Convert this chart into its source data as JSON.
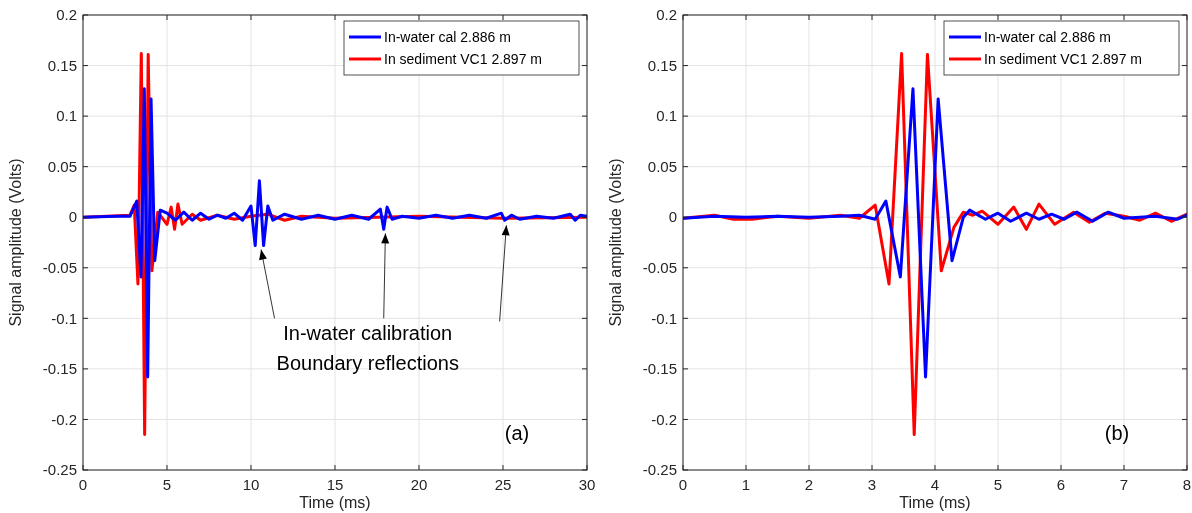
{
  "chart_data": [
    {
      "type": "line",
      "xlabel": "Time (ms)",
      "ylabel": "Signal amplitude (Volts)",
      "xlim": [
        0,
        30
      ],
      "xticks": [
        0,
        5,
        10,
        15,
        20,
        25,
        30
      ],
      "ylim": [
        -0.25,
        0.2
      ],
      "yticks": [
        -0.25,
        -0.2,
        -0.15,
        -0.1,
        -0.05,
        0,
        0.05,
        0.1,
        0.15,
        0.2
      ],
      "grid": true,
      "legend": "top right",
      "annotations": [
        "(a)",
        {
          "text": "In-water calibration\nBoundary reflections",
          "x": 10.6,
          "y": -0.032
        }
      ],
      "series": [
        {
          "name": "In sediment VC1 2.897 m",
          "color": "#ff0000",
          "x": [
            0,
            2.8,
            3.05,
            3.27,
            3.47,
            3.67,
            3.88,
            4.1,
            4.45,
            5,
            5.25,
            5.45,
            5.65,
            5.9,
            6.5,
            7,
            8,
            9,
            10,
            11,
            12,
            13,
            15,
            20,
            25,
            30
          ],
          "values": [
            0,
            0.002,
            0.012,
            -0.066,
            0.162,
            -0.215,
            0.161,
            -0.053,
            0.005,
            -0.007,
            0.01,
            -0.012,
            0.013,
            -0.007,
            0.003,
            -0.003,
            0.002,
            -0.002,
            0.001,
            0.003,
            -0.003,
            0.001,
            -0.001,
            0.001,
            -0.001,
            0
          ]
        },
        {
          "name": "In-water cal 2.886 m",
          "color": "#0000ff",
          "x": [
            0,
            2,
            2.8,
            3.2,
            3.45,
            3.65,
            3.85,
            4.05,
            4.27,
            4.6,
            5,
            5.5,
            6,
            6.5,
            7,
            7.5,
            8,
            8.5,
            9,
            9.5,
            10,
            10.25,
            10.5,
            10.75,
            11,
            11.3,
            12,
            13,
            14,
            15,
            16,
            17,
            17.7,
            17.9,
            18.1,
            18.4,
            19,
            20,
            21,
            22,
            23,
            24,
            24.9,
            25.1,
            25.5,
            26,
            27,
            28,
            29,
            29.3,
            29.6,
            30
          ],
          "values": [
            0,
            0.001,
            0.001,
            0.016,
            -0.059,
            0.127,
            -0.158,
            0.117,
            -0.043,
            0.007,
            0.004,
            -0.003,
            0.005,
            -0.003,
            0.004,
            -0.002,
            0.002,
            -0.001,
            0.004,
            -0.003,
            0.011,
            -0.028,
            0.036,
            -0.028,
            0.011,
            -0.003,
            0.003,
            -0.002,
            0.002,
            -0.002,
            0.002,
            -0.002,
            0.008,
            -0.012,
            0.01,
            -0.002,
            0.001,
            -0.001,
            0.002,
            -0.001,
            0.002,
            -0.001,
            0.004,
            -0.003,
            0.002,
            -0.002,
            0.001,
            -0.001,
            0.003,
            -0.003,
            0.002,
            0.001
          ]
        }
      ]
    },
    {
      "type": "line",
      "xlabel": "Time (ms)",
      "ylabel": "Signal amplitude (Volts)",
      "xlim": [
        0,
        8
      ],
      "xticks": [
        0,
        1,
        2,
        3,
        4,
        5,
        6,
        7,
        8
      ],
      "ylim": [
        -0.25,
        0.2
      ],
      "yticks": [
        -0.25,
        -0.2,
        -0.15,
        -0.1,
        -0.05,
        0,
        0.05,
        0.1,
        0.15,
        0.2
      ],
      "grid": true,
      "legend": "top right",
      "annotations": [
        "(b)"
      ],
      "series": [
        {
          "name": "In sediment VC1 2.897 m",
          "color": "#ff0000",
          "x": [
            0,
            0.5,
            0.8,
            1.1,
            1.5,
            2,
            2.5,
            2.8,
            3.05,
            3.27,
            3.47,
            3.67,
            3.88,
            4.1,
            4.3,
            4.45,
            4.6,
            4.75,
            5,
            5.25,
            5.45,
            5.65,
            5.9,
            6.2,
            6.45,
            6.7,
            7,
            7.25,
            7.5,
            7.75,
            8
          ],
          "values": [
            -0.001,
            0.002,
            -0.002,
            -0.002,
            0.001,
            -0.001,
            0.002,
            -0.001,
            0.012,
            -0.066,
            0.162,
            -0.215,
            0.161,
            -0.053,
            -0.01,
            0.005,
            0.002,
            0.006,
            -0.007,
            0.01,
            -0.012,
            0.013,
            -0.007,
            0.005,
            -0.005,
            0.004,
            0.001,
            -0.003,
            0.004,
            -0.004,
            0.003
          ]
        },
        {
          "name": "In-water cal 2.886 m",
          "color": "#0000ff",
          "x": [
            0,
            0.5,
            1,
            1.5,
            2,
            2.5,
            2.8,
            3.05,
            3.22,
            3.45,
            3.65,
            3.85,
            4.05,
            4.27,
            4.45,
            4.55,
            4.8,
            5,
            5.2,
            5.45,
            5.65,
            5.85,
            6.05,
            6.25,
            6.5,
            6.75,
            7,
            7.5,
            7.85,
            8
          ],
          "values": [
            -0.001,
            0.001,
            0,
            0.001,
            0,
            0.001,
            0.002,
            -0.002,
            0.016,
            -0.059,
            0.127,
            -0.158,
            0.117,
            -0.043,
            0,
            0.007,
            -0.002,
            0.004,
            -0.004,
            0.004,
            -0.002,
            0.003,
            -0.002,
            0.005,
            -0.004,
            0.005,
            -0.001,
            0.001,
            -0.002,
            0.002
          ]
        }
      ]
    }
  ]
}
